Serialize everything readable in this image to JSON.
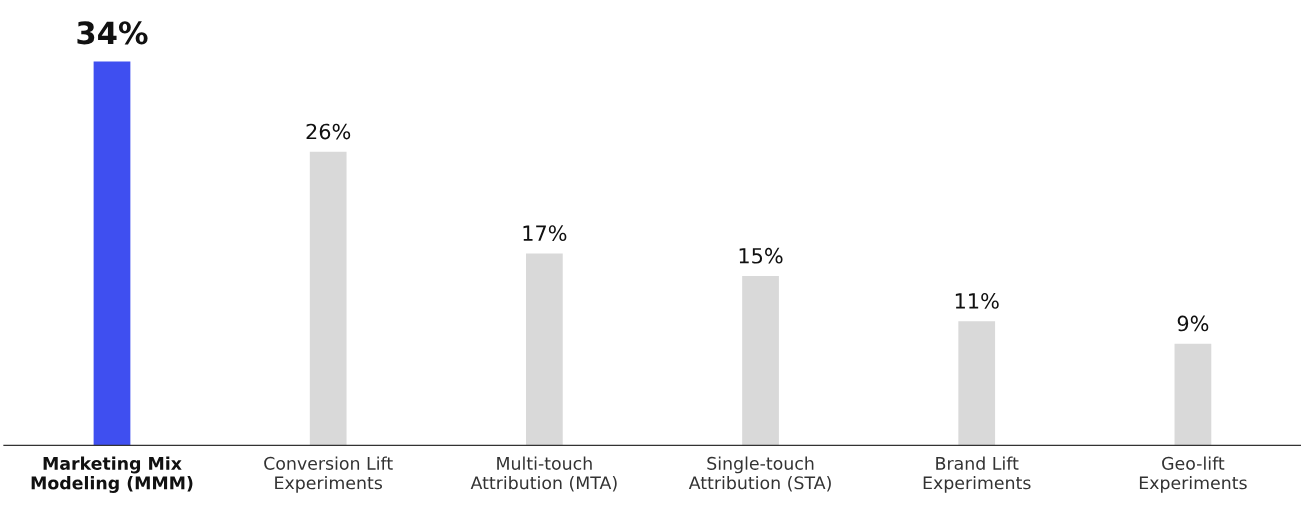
{
  "chart_data": {
    "type": "bar",
    "categories": [
      "Marketing Mix\nModeling (MMM)",
      "Conversion Lift\nExperiments",
      "Multi-touch\nAttribution (MTA)",
      "Single-touch\nAttribution (STA)",
      "Brand Lift\nExperiments",
      "Geo-lift\nExperiments"
    ],
    "values": [
      34,
      26,
      17,
      15,
      11,
      9
    ],
    "colors": [
      "#3f4ff0",
      "#d9d9d9",
      "#d9d9d9",
      "#d9d9d9",
      "#d9d9d9",
      "#d9d9d9"
    ],
    "value_labels": [
      "34%",
      "26%",
      "17%",
      "15%",
      "11%",
      "9%"
    ],
    "grid": false,
    "legend": false
  }
}
